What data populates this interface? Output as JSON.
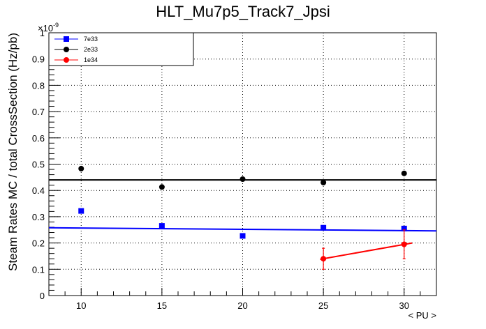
{
  "chart_data": {
    "type": "scatter",
    "title": "HLT_Mu7p5_Track7_Jpsi",
    "xlabel": "< PU >",
    "ylabel": "Steam Rates MC / total CrossSection (Hz/pb)",
    "y_multiplier": "×10",
    "y_exponent": "-9",
    "xlim": [
      8,
      32
    ],
    "ylim": [
      0,
      1
    ],
    "xticks": [
      "10",
      "15",
      "20",
      "25",
      "30"
    ],
    "yticks": [
      "0",
      "0.1",
      "0.2",
      "0.3",
      "0.4",
      "0.5",
      "0.6",
      "0.7",
      "0.8",
      "0.9",
      "1"
    ],
    "grid": true,
    "legend_position": "top-left",
    "series": [
      {
        "name": "7e33",
        "color": "#0000ff",
        "marker": "square",
        "x": [
          10,
          15,
          20,
          25,
          30
        ],
        "y": [
          0.322,
          0.265,
          0.227,
          0.258,
          0.255
        ],
        "fit": {
          "x": [
            8,
            32
          ],
          "y": [
            0.258,
            0.246
          ]
        }
      },
      {
        "name": "2e33",
        "color": "#000000",
        "marker": "circle",
        "x": [
          10,
          15,
          20,
          25,
          30
        ],
        "y": [
          0.483,
          0.413,
          0.443,
          0.43,
          0.465
        ],
        "fit": {
          "x": [
            8,
            32
          ],
          "y": [
            0.44,
            0.44
          ]
        }
      },
      {
        "name": "1e34",
        "color": "#ff0000",
        "marker": "circle",
        "x": [
          25,
          30
        ],
        "y": [
          0.14,
          0.195
        ],
        "yerr": [
          0.04,
          0.055
        ],
        "fit": {
          "x": [
            24.8,
            30.5
          ],
          "y": [
            0.138,
            0.2
          ]
        }
      }
    ]
  }
}
